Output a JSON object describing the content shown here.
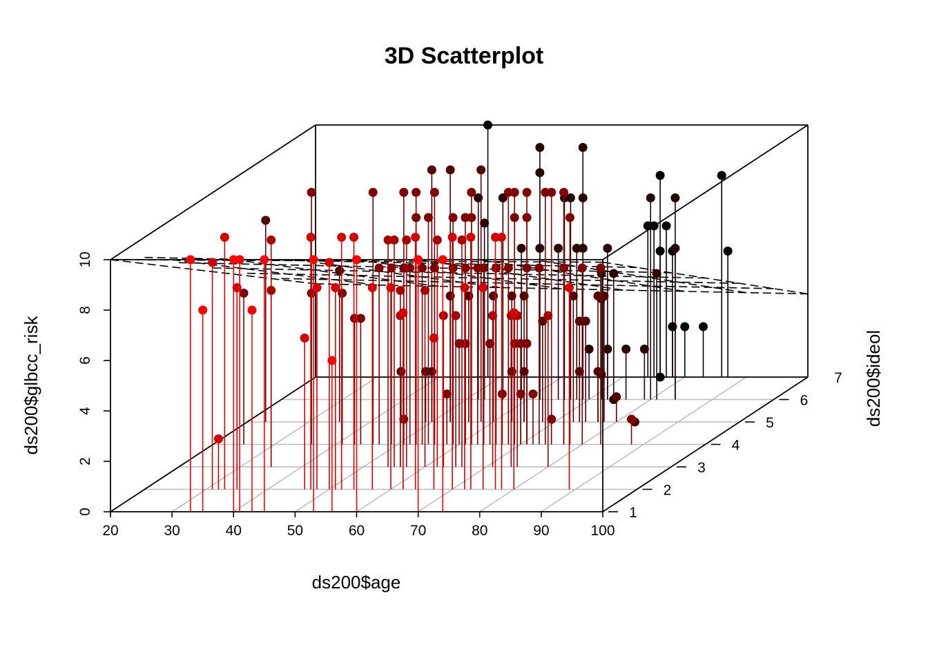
{
  "chart_data": {
    "type": "scatter3d",
    "title": "3D Scatterplot",
    "xlabel": "ds200$age",
    "ylabel": "ds200$ideol",
    "zlabel": "ds200$glbcc_risk",
    "xlim": [
      20,
      100
    ],
    "ylim": [
      1,
      7
    ],
    "zlim": [
      0,
      10
    ],
    "x_ticks": [
      "20",
      "30",
      "40",
      "50",
      "60",
      "70",
      "80",
      "90",
      "100"
    ],
    "y_ticks": [
      "1",
      "2",
      "3",
      "4",
      "5",
      "6",
      "7"
    ],
    "z_ticks": [
      "0",
      "2",
      "4",
      "6",
      "8",
      "10"
    ],
    "grid": true,
    "vertical_stems": true,
    "color_by": "ideol",
    "color_low": "#FF0000",
    "color_high": "#000000",
    "regression_plane": {
      "intercept": 11.5,
      "age_coef": -0.005,
      "ideol_coef": -1.1,
      "line_style": "dashed"
    },
    "points": [
      [
        33,
        1,
        10
      ],
      [
        35,
        1,
        8
      ],
      [
        40,
        1,
        10
      ],
      [
        41,
        1,
        10
      ],
      [
        43,
        1,
        8
      ],
      [
        45,
        1,
        10
      ],
      [
        53,
        1,
        10
      ],
      [
        56,
        1,
        6
      ],
      [
        60,
        1,
        10
      ],
      [
        70,
        1,
        10
      ],
      [
        74,
        1,
        10
      ],
      [
        31,
        2,
        9
      ],
      [
        32,
        2,
        2
      ],
      [
        33,
        2,
        10
      ],
      [
        35,
        2,
        8
      ],
      [
        46,
        2,
        6
      ],
      [
        47,
        2,
        10
      ],
      [
        48,
        2,
        8
      ],
      [
        50,
        2,
        9
      ],
      [
        51,
        2,
        8
      ],
      [
        52,
        2,
        10
      ],
      [
        54,
        2,
        10
      ],
      [
        57,
        2,
        8
      ],
      [
        62,
        2,
        7
      ],
      [
        64,
        2,
        10
      ],
      [
        70,
        2,
        10
      ],
      [
        73,
        2,
        10
      ],
      [
        77,
        2,
        10
      ],
      [
        78,
        2,
        10
      ],
      [
        80,
        2,
        7
      ],
      [
        72,
        2,
        8
      ],
      [
        75,
        2,
        8
      ],
      [
        89,
        2,
        8
      ],
      [
        67,
        2,
        6
      ],
      [
        60,
        2,
        8
      ],
      [
        35,
        3,
        9
      ],
      [
        35,
        3,
        7
      ],
      [
        54,
        3,
        9
      ],
      [
        55,
        3,
        9
      ],
      [
        57,
        3,
        9
      ],
      [
        62,
        3,
        9
      ],
      [
        66,
        3,
        9
      ],
      [
        60,
        3,
        7
      ],
      [
        56,
        3,
        7
      ],
      [
        56,
        3,
        6
      ],
      [
        63,
        3,
        6
      ],
      [
        65,
        3,
        6
      ],
      [
        71,
        3,
        6
      ],
      [
        74,
        3,
        6
      ],
      [
        75,
        3,
        6
      ],
      [
        80,
        3,
        6
      ],
      [
        25,
        4,
        6
      ],
      [
        36,
        4,
        6
      ],
      [
        43,
        4,
        5
      ],
      [
        44,
        4,
        5
      ],
      [
        41,
        4,
        6
      ],
      [
        36,
        4,
        10
      ],
      [
        46,
        4,
        10
      ],
      [
        51,
        4,
        10
      ],
      [
        53,
        4,
        10
      ],
      [
        56,
        4,
        10
      ],
      [
        62,
        4,
        10
      ],
      [
        68,
        4,
        10
      ],
      [
        69,
        4,
        10
      ],
      [
        71,
        4,
        10
      ],
      [
        74,
        4,
        10
      ],
      [
        75,
        4,
        10
      ],
      [
        77,
        4,
        10
      ],
      [
        53,
        4,
        9
      ],
      [
        55,
        4,
        9
      ],
      [
        59,
        4,
        9
      ],
      [
        61,
        4,
        9
      ],
      [
        62,
        4,
        9
      ],
      [
        69,
        4,
        9
      ],
      [
        71,
        4,
        9
      ],
      [
        78,
        4,
        9
      ],
      [
        47,
        4,
        7
      ],
      [
        49,
        4,
        7
      ],
      [
        51,
        4,
        7
      ],
      [
        52,
        4,
        7
      ],
      [
        54,
        4,
        7
      ],
      [
        56,
        4,
        7
      ],
      [
        59,
        4,
        7
      ],
      [
        61,
        4,
        7
      ],
      [
        63,
        4,
        7
      ],
      [
        64,
        4,
        7
      ],
      [
        66,
        4,
        7
      ],
      [
        68,
        4,
        7
      ],
      [
        71,
        4,
        7
      ],
      [
        73,
        4,
        7
      ],
      [
        77,
        4,
        7
      ],
      [
        80,
        4,
        7
      ],
      [
        83,
        4,
        7
      ],
      [
        60,
        4,
        4
      ],
      [
        65,
        4,
        4
      ],
      [
        71,
        4,
        4
      ],
      [
        70,
        4,
        4
      ],
      [
        69,
        4,
        4
      ],
      [
        61,
        4,
        4
      ],
      [
        58,
        4,
        2
      ],
      [
        67,
        4,
        2
      ],
      [
        70,
        4,
        2
      ],
      [
        72,
        4,
        2
      ],
      [
        51,
        4,
        1
      ],
      [
        75,
        4,
        1
      ],
      [
        88,
        4,
        1
      ],
      [
        23,
        5,
        8
      ],
      [
        35,
        5,
        6
      ],
      [
        50,
        5,
        10
      ],
      [
        53,
        5,
        10
      ],
      [
        58,
        5,
        10
      ],
      [
        53,
        5,
        5
      ],
      [
        56,
        5,
        5
      ],
      [
        60,
        5,
        5
      ],
      [
        63,
        5,
        5
      ],
      [
        65,
        5,
        5
      ],
      [
        73,
        5,
        5
      ],
      [
        77,
        5,
        5
      ],
      [
        78,
        5,
        5
      ],
      [
        68,
        5,
        4
      ],
      [
        74,
        5,
        4
      ],
      [
        75,
        5,
        4
      ],
      [
        49,
        5,
        2
      ],
      [
        45,
        5,
        2
      ],
      [
        50,
        5,
        2
      ],
      [
        63,
        5,
        2
      ],
      [
        65,
        5,
        2
      ],
      [
        74,
        5,
        2
      ],
      [
        77,
        5,
        2
      ],
      [
        80,
        5,
        1
      ],
      [
        83,
        5,
        0
      ],
      [
        62,
        6,
        10
      ],
      [
        69,
        6,
        10
      ],
      [
        62,
        6,
        9
      ],
      [
        52,
        6,
        8
      ],
      [
        56,
        6,
        8
      ],
      [
        66,
        6,
        8
      ],
      [
        67,
        6,
        8
      ],
      [
        69,
        6,
        8
      ],
      [
        53,
        6,
        7
      ],
      [
        59,
        6,
        6
      ],
      [
        62,
        6,
        6
      ],
      [
        65,
        6,
        6
      ],
      [
        68,
        6,
        6
      ],
      [
        69,
        6,
        6
      ],
      [
        73,
        6,
        6
      ],
      [
        70,
        6,
        2
      ],
      [
        73,
        6,
        2
      ],
      [
        76,
        6,
        2
      ],
      [
        79,
        6,
        2
      ],
      [
        80,
        6,
        8
      ],
      [
        84,
        6,
        8
      ],
      [
        84,
        6,
        6
      ],
      [
        81,
        6,
        5
      ],
      [
        72,
        6,
        5
      ],
      [
        74,
        6,
        5
      ],
      [
        72,
        6,
        4
      ],
      [
        72,
        6,
        1
      ],
      [
        74,
        6,
        0
      ],
      [
        48,
        7,
        10
      ],
      [
        76,
        7,
        8
      ],
      [
        86,
        7,
        8
      ],
      [
        74,
        7,
        6
      ],
      [
        75,
        7,
        6
      ],
      [
        77,
        7,
        6
      ],
      [
        76,
        7,
        5
      ],
      [
        78,
        7,
        5
      ],
      [
        87,
        7,
        5
      ],
      [
        78,
        7,
        2
      ],
      [
        80,
        7,
        2
      ],
      [
        83,
        7,
        2
      ],
      [
        76,
        7,
        0
      ]
    ]
  }
}
